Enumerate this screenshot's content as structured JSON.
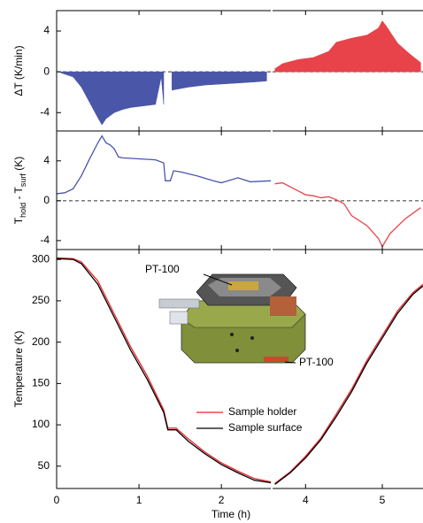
{
  "chart_data": [
    {
      "type": "area",
      "ylabel": "ΔT (K/min)",
      "ylim": [
        -5.8,
        6
      ],
      "yticks": [
        -4,
        0,
        4
      ],
      "xlim": [
        0,
        5.53
      ],
      "xsegments": [
        [
          0,
          2.6
        ],
        [
          3.57,
          5.53
        ]
      ],
      "xticks": [
        0,
        1,
        2,
        4,
        5
      ],
      "zero_line": true,
      "series": [
        {
          "color": "#4a56a8",
          "x": [
            0.05,
            0.2,
            0.3,
            0.4,
            0.5,
            0.55,
            0.6,
            0.7,
            0.8,
            0.9,
            1.0,
            1.1,
            1.2,
            1.27,
            1.3,
            1.34,
            1.4,
            1.6,
            1.8,
            2.0,
            2.2,
            2.4,
            2.55
          ],
          "values": [
            -0.1,
            -0.5,
            -1.5,
            -3,
            -4.5,
            -5.2,
            -4.6,
            -4.0,
            -3.7,
            -3.5,
            -3.4,
            -3.3,
            -3.2,
            -0.5,
            -3.2,
            null,
            -1.8,
            -1.5,
            -1.3,
            -1.2,
            -1.1,
            -1.0,
            -0.9
          ]
        },
        {
          "color": "#e8434a",
          "x": [
            3.6,
            3.7,
            3.9,
            4.1,
            4.3,
            4.4,
            4.6,
            4.8,
            4.95,
            5.0,
            5.05,
            5.2,
            5.35,
            5.5
          ],
          "values": [
            0.3,
            0.8,
            1.2,
            1.4,
            2.0,
            2.9,
            3.3,
            3.6,
            4.3,
            5.0,
            4.5,
            2.8,
            1.8,
            0.9
          ]
        }
      ]
    },
    {
      "type": "line",
      "ylabel": [
        "T",
        "hold",
        " - T",
        "surf",
        " (K)"
      ],
      "ylim": [
        -4.9,
        7
      ],
      "yticks": [
        -4,
        0,
        4
      ],
      "xlim": [
        0,
        5.53
      ],
      "xsegments": [
        [
          0,
          2.6
        ],
        [
          3.57,
          5.53
        ]
      ],
      "xticks": [
        0,
        1,
        2,
        4,
        5
      ],
      "zero_line": true,
      "series": [
        {
          "color": "#4a56a8",
          "x": [
            0,
            0.1,
            0.2,
            0.3,
            0.4,
            0.5,
            0.55,
            0.6,
            0.65,
            0.7,
            0.75,
            0.8,
            1.0,
            1.2,
            1.3,
            1.32,
            1.38,
            1.42,
            1.5,
            1.7,
            1.9,
            2.0,
            2.2,
            2.35,
            2.6
          ],
          "values": [
            0.7,
            0.8,
            1.2,
            2.5,
            4.2,
            5.8,
            6.5,
            5.8,
            5.6,
            5.2,
            4.4,
            4.3,
            4.2,
            4.1,
            3.8,
            2.0,
            2.0,
            3.0,
            2.9,
            2.5,
            2.0,
            1.8,
            2.3,
            1.9,
            2.0
          ]
        },
        {
          "color": "#e8434a",
          "x": [
            3.6,
            3.7,
            3.8,
            3.9,
            4.0,
            4.1,
            4.2,
            4.3,
            4.4,
            4.5,
            4.6,
            4.8,
            4.95,
            5.0,
            5.1,
            5.3,
            5.5
          ],
          "values": [
            1.7,
            1.8,
            1.4,
            1.0,
            0.6,
            0.5,
            0.3,
            0.4,
            0.1,
            -0.3,
            -1.5,
            -2.5,
            -3.8,
            -4.6,
            -3.3,
            -1.8,
            -0.7
          ]
        }
      ]
    },
    {
      "type": "line",
      "ylabel": "Temperature (K)",
      "xlabel": "Time (h)",
      "ylim": [
        23,
        312
      ],
      "yticks": [
        50,
        100,
        150,
        200,
        250,
        300
      ],
      "xlim": [
        0,
        5.53
      ],
      "xsegments": [
        [
          0,
          2.6
        ],
        [
          3.57,
          5.53
        ]
      ],
      "xticks": [
        0,
        1,
        2,
        4,
        5
      ],
      "x": [
        0,
        0.2,
        0.3,
        0.5,
        0.7,
        0.9,
        1.1,
        1.3,
        1.35,
        1.45,
        1.6,
        1.8,
        2.0,
        2.2,
        2.4,
        2.6,
        3.0,
        3.6,
        3.8,
        4.0,
        4.2,
        4.4,
        4.6,
        4.8,
        5.0,
        5.2,
        5.4,
        5.53
      ],
      "series": [
        {
          "name": "Sample holder",
          "color": "#e8232a",
          "values": [
            302,
            301,
            297,
            274,
            234,
            194,
            159,
            118,
            96,
            96,
            83,
            67,
            54,
            44,
            35,
            31,
            null,
            29,
            43,
            62,
            84,
            113,
            143,
            178,
            208,
            238,
            260,
            270
          ]
        },
        {
          "name": "Sample surface",
          "color": "#000000",
          "values": [
            301,
            300,
            295,
            270,
            230,
            190,
            155,
            115,
            94,
            94,
            80,
            65,
            52,
            42,
            33,
            30,
            null,
            28,
            42,
            60,
            82,
            110,
            140,
            175,
            205,
            235,
            258,
            268
          ]
        }
      ],
      "annotations": [
        "PT-100",
        "PT-100"
      ]
    }
  ]
}
